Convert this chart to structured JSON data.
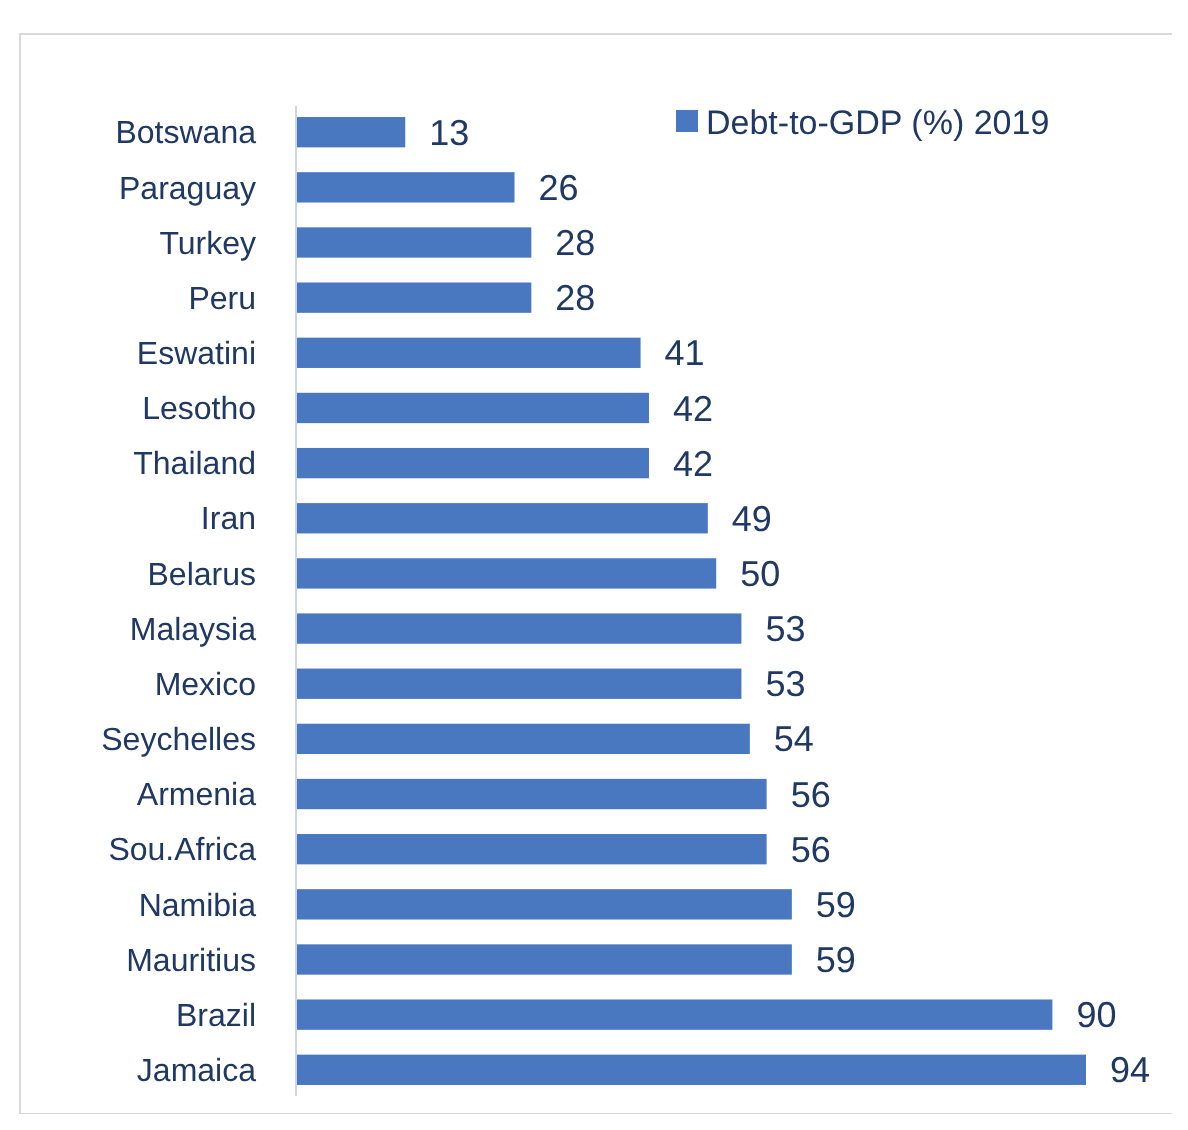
{
  "chart_data": {
    "type": "bar",
    "orientation": "horizontal",
    "categories": [
      "Botswana",
      "Paraguay",
      "Turkey",
      "Peru",
      "Eswatini",
      "Lesotho",
      "Thailand",
      "Iran",
      "Belarus",
      "Malaysia",
      "Mexico",
      "Seychelles",
      "Armenia",
      "Sou.Africa",
      "Namibia",
      "Mauritius",
      "Brazil",
      "Jamaica"
    ],
    "series": [
      {
        "name": "Debt-to-GDP (%) 2019",
        "color": "#4a78c0",
        "values": [
          13,
          26,
          28,
          28,
          41,
          42,
          42,
          49,
          50,
          53,
          53,
          54,
          56,
          56,
          59,
          59,
          90,
          94
        ]
      }
    ],
    "data_labels": true,
    "legend": "top right",
    "grid": false
  }
}
